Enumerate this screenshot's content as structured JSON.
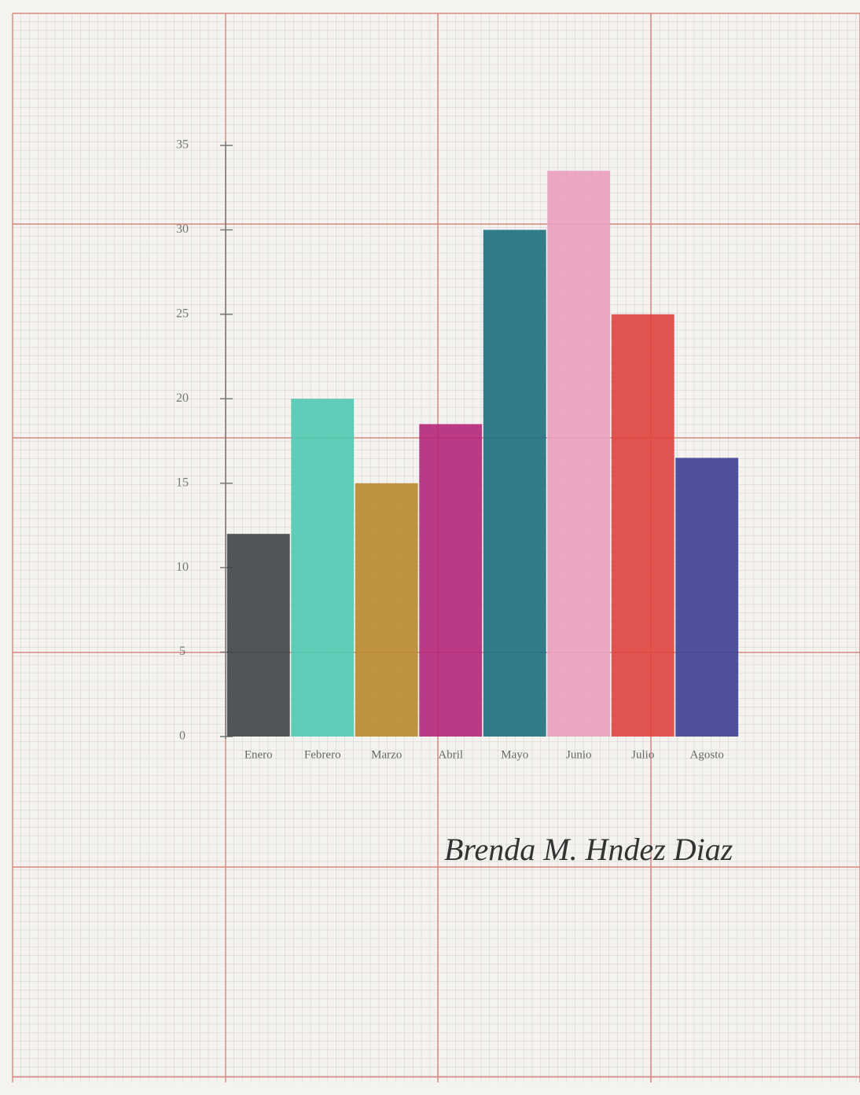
{
  "chart_data": {
    "type": "bar",
    "categories": [
      "Enero",
      "Febrero",
      "Marzo",
      "Abril",
      "Mayo",
      "Junio",
      "Julio",
      "Agosto"
    ],
    "values": [
      12,
      20,
      15,
      18.5,
      30,
      33.5,
      25,
      16.5
    ],
    "colors": [
      "#3f4446",
      "#4fc9b0",
      "#b8892e",
      "#b4267a",
      "#1d6f7e",
      "#eaa0bc",
      "#e0433d",
      "#3d3f94"
    ],
    "ylim": [
      0,
      35
    ],
    "yticks": [
      0,
      5,
      10,
      15,
      20,
      25,
      30,
      35
    ],
    "signature": "Brenda M. Hndez Diaz"
  }
}
